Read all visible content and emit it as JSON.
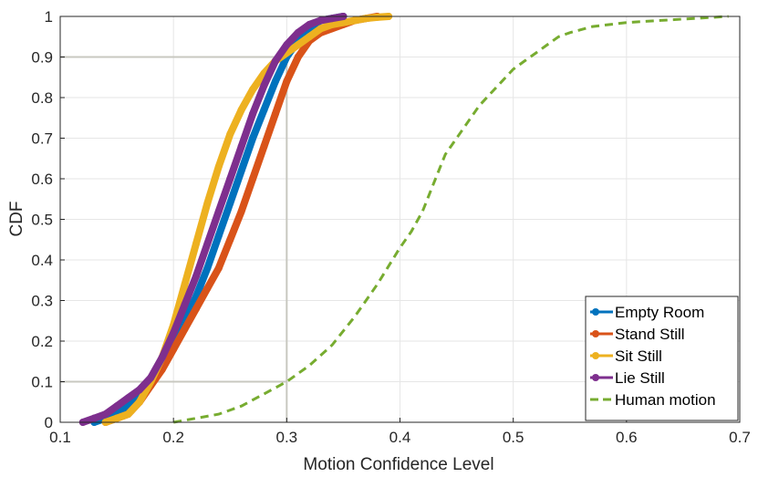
{
  "chart_data": {
    "type": "line",
    "title": "",
    "xlabel": "Motion Confidence Level",
    "ylabel": "CDF",
    "xlim": [
      0.1,
      0.7
    ],
    "ylim": [
      0,
      1
    ],
    "xticks": [
      "0.1",
      "0.2",
      "0.3",
      "0.4",
      "0.5",
      "0.6",
      "0.7"
    ],
    "yticks": [
      "0",
      "0.1",
      "0.2",
      "0.3",
      "0.4",
      "0.5",
      "0.6",
      "0.7",
      "0.8",
      "0.9",
      "1"
    ],
    "grid": true,
    "legend_position": "bottom-right",
    "series": [
      {
        "name": "Empty Room",
        "color": "#0072BD",
        "style": "solid-markers",
        "x": [
          0.13,
          0.14,
          0.15,
          0.16,
          0.17,
          0.18,
          0.19,
          0.2,
          0.21,
          0.22,
          0.23,
          0.24,
          0.25,
          0.26,
          0.27,
          0.28,
          0.29,
          0.3,
          0.31,
          0.32,
          0.33,
          0.34,
          0.35
        ],
        "y": [
          0.0,
          0.01,
          0.02,
          0.04,
          0.07,
          0.1,
          0.14,
          0.19,
          0.25,
          0.31,
          0.38,
          0.46,
          0.54,
          0.62,
          0.7,
          0.77,
          0.84,
          0.9,
          0.94,
          0.97,
          0.99,
          0.995,
          1.0
        ]
      },
      {
        "name": "Stand Still",
        "color": "#D95319",
        "style": "solid-markers",
        "x": [
          0.14,
          0.15,
          0.16,
          0.17,
          0.18,
          0.19,
          0.2,
          0.21,
          0.22,
          0.23,
          0.24,
          0.25,
          0.26,
          0.27,
          0.28,
          0.29,
          0.3,
          0.31,
          0.32,
          0.33,
          0.34,
          0.35,
          0.36,
          0.37,
          0.38
        ],
        "y": [
          0.0,
          0.01,
          0.02,
          0.05,
          0.09,
          0.13,
          0.18,
          0.23,
          0.28,
          0.33,
          0.38,
          0.45,
          0.52,
          0.6,
          0.68,
          0.76,
          0.84,
          0.9,
          0.94,
          0.96,
          0.97,
          0.98,
          0.99,
          0.995,
          1.0
        ]
      },
      {
        "name": "Sit Still",
        "color": "#EDB120",
        "style": "solid-markers",
        "x": [
          0.14,
          0.15,
          0.16,
          0.17,
          0.18,
          0.19,
          0.2,
          0.21,
          0.22,
          0.23,
          0.24,
          0.25,
          0.26,
          0.27,
          0.28,
          0.29,
          0.3,
          0.31,
          0.32,
          0.33,
          0.34,
          0.35,
          0.36,
          0.37,
          0.38,
          0.39
        ],
        "y": [
          0.0,
          0.01,
          0.02,
          0.05,
          0.1,
          0.16,
          0.24,
          0.34,
          0.44,
          0.54,
          0.63,
          0.71,
          0.77,
          0.82,
          0.86,
          0.89,
          0.91,
          0.93,
          0.95,
          0.97,
          0.98,
          0.985,
          0.99,
          0.995,
          0.998,
          1.0
        ]
      },
      {
        "name": "Lie Still",
        "color": "#7E2F8E",
        "style": "solid-markers",
        "x": [
          0.12,
          0.13,
          0.14,
          0.15,
          0.16,
          0.17,
          0.18,
          0.19,
          0.2,
          0.21,
          0.22,
          0.23,
          0.24,
          0.25,
          0.26,
          0.27,
          0.28,
          0.29,
          0.3,
          0.31,
          0.32,
          0.33,
          0.34,
          0.35
        ],
        "y": [
          0.0,
          0.01,
          0.02,
          0.04,
          0.06,
          0.08,
          0.11,
          0.16,
          0.22,
          0.29,
          0.36,
          0.44,
          0.52,
          0.6,
          0.68,
          0.76,
          0.83,
          0.89,
          0.93,
          0.96,
          0.98,
          0.99,
          0.995,
          1.0
        ]
      },
      {
        "name": "Human motion",
        "color": "#77AC30",
        "style": "dashed",
        "x": [
          0.2,
          0.22,
          0.24,
          0.26,
          0.28,
          0.3,
          0.32,
          0.34,
          0.36,
          0.38,
          0.4,
          0.41,
          0.42,
          0.43,
          0.44,
          0.45,
          0.46,
          0.47,
          0.48,
          0.49,
          0.5,
          0.51,
          0.52,
          0.53,
          0.54,
          0.55,
          0.57,
          0.6,
          0.63,
          0.66,
          0.69
        ],
        "y": [
          0.0,
          0.01,
          0.02,
          0.04,
          0.07,
          0.1,
          0.14,
          0.19,
          0.26,
          0.34,
          0.43,
          0.47,
          0.52,
          0.59,
          0.66,
          0.7,
          0.74,
          0.78,
          0.81,
          0.84,
          0.87,
          0.89,
          0.91,
          0.93,
          0.95,
          0.96,
          0.975,
          0.985,
          0.99,
          0.995,
          1.0
        ]
      }
    ],
    "reference_lines": [
      {
        "name": "ref-cdf-0.9",
        "x": 0.3,
        "y": 0.9
      },
      {
        "name": "ref-cdf-0.1",
        "x": 0.3,
        "y": 0.1
      }
    ],
    "guide_color": "#C8C8C0"
  }
}
